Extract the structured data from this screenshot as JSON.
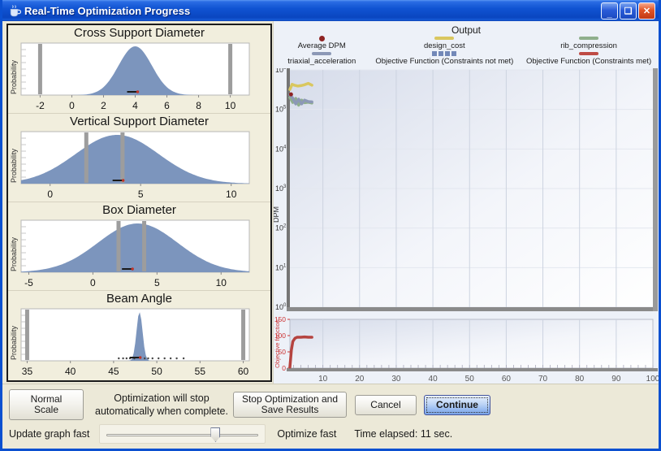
{
  "window": {
    "title": "Real-Time Optimization Progress",
    "minimize_glyph": "_",
    "restore_glyph": "❏",
    "close_glyph": "✕"
  },
  "output_panel": {
    "title": "Output",
    "legend": [
      {
        "label": "Average DPM",
        "marker": "dot",
        "color": "#8e2323"
      },
      {
        "label": "design_cost",
        "marker": "line",
        "color": "#d9c75f"
      },
      {
        "label": "rib_compression",
        "marker": "line",
        "color": "#8faf8c"
      },
      {
        "label": "triaxial_acceleration",
        "marker": "line",
        "color": "#8c98b6"
      },
      {
        "label": "Objective Function (Constraints not met)",
        "marker": "squares",
        "color": "#7288b8"
      },
      {
        "label": "Objective Function (Constraints met)",
        "marker": "line",
        "color": "#be4b45"
      }
    ]
  },
  "chart_data": [
    {
      "type": "area",
      "title": "Cross Support Diameter",
      "ylabel": "Probability",
      "xmin": -3.2,
      "xmax": 11.2,
      "xticks": [
        -2,
        0,
        2,
        4,
        6,
        8,
        10
      ],
      "mean": 4,
      "std": 1.05,
      "bounds": [
        -2,
        10
      ],
      "marker": 4,
      "fill": "#7c95bd"
    },
    {
      "type": "area",
      "title": "Vertical Support Diameter",
      "ylabel": "Probability",
      "xmin": -1.6,
      "xmax": 11.0,
      "xticks": [
        0,
        5,
        10
      ],
      "mean": 3.7,
      "std": 2.3,
      "bounds": [
        2,
        4
      ],
      "marker": 3.9,
      "fill": "#7c95bd"
    },
    {
      "type": "area",
      "title": "Box Diameter",
      "ylabel": "Probability",
      "xmin": -5.6,
      "xmax": 12.2,
      "xticks": [
        -5,
        0,
        5,
        10
      ],
      "mean": 3.5,
      "std": 3.1,
      "bounds": [
        2,
        4
      ],
      "marker": 2.9,
      "fill": "#7c95bd"
    },
    {
      "type": "area",
      "title": "Beam Angle",
      "ylabel": "Probability",
      "xmin": 34.3,
      "xmax": 60.7,
      "xticks": [
        35,
        40,
        45,
        50,
        55,
        60
      ],
      "mean": 48,
      "std": 0.35,
      "bounds": [
        35,
        60
      ],
      "marker": 47.8,
      "fill": "#7c95bd",
      "dots": [
        45.6,
        46.1,
        46.5,
        46.9,
        47.4,
        48.6,
        49.0,
        49.5,
        50.2,
        50.9,
        51.6,
        52.3,
        53.1
      ]
    },
    {
      "type": "line",
      "ylabel": "DPM",
      "yscale": "log",
      "ydecades": [
        6,
        5,
        4,
        3,
        2,
        1,
        0
      ],
      "xlim": [
        1,
        100
      ],
      "xticks": [
        10,
        20,
        30,
        40,
        50,
        60,
        70,
        80,
        90,
        100
      ],
      "series": [
        {
          "name": "design_cost",
          "color": "#d9c75f",
          "points": [
            [
              1,
              320000
            ],
            [
              1.6,
              430000
            ],
            [
              2.4,
              405000
            ],
            [
              3.2,
              390000
            ],
            [
              4,
              400000
            ],
            [
              5,
              420000
            ],
            [
              6,
              455000
            ],
            [
              7,
              410000
            ]
          ]
        },
        {
          "name": "rib_compression",
          "color": "#8faf8c",
          "points": [
            [
              1,
              200000
            ],
            [
              1.8,
              150000
            ],
            [
              2.6,
              190000
            ],
            [
              3.4,
              128000
            ],
            [
              4.2,
              172000
            ],
            [
              5,
              148000
            ],
            [
              6,
              152000
            ],
            [
              7,
              145000
            ]
          ]
        },
        {
          "name": "triaxial_acceleration",
          "color": "#8c98b6",
          "points": [
            [
              1,
              235000
            ],
            [
              1.8,
              192000
            ],
            [
              2.6,
              138000
            ],
            [
              3.4,
              182000
            ],
            [
              4.2,
              138000
            ],
            [
              5,
              172000
            ],
            [
              6,
              158000
            ],
            [
              7,
              155000
            ]
          ]
        }
      ],
      "point_series": [
        {
          "name": "Average DPM",
          "color": "#8e2323",
          "points": [
            [
              1.3,
              240000
            ]
          ]
        }
      ]
    },
    {
      "type": "line",
      "ylabel": "Objective function",
      "ylim": [
        0,
        150
      ],
      "yticks": [
        0,
        50,
        100,
        150
      ],
      "xlim": [
        1,
        100
      ],
      "xticks": [
        10,
        20,
        30,
        40,
        50,
        60,
        70,
        80,
        90,
        100
      ],
      "series": [
        {
          "name": "Objective Function",
          "color": "#b5433f",
          "points": [
            [
              1,
              3
            ],
            [
              1.4,
              55
            ],
            [
              1.8,
              82
            ],
            [
              2.4,
              92
            ],
            [
              3,
              95
            ],
            [
              4,
              95
            ],
            [
              5,
              96
            ],
            [
              6,
              95
            ],
            [
              7,
              95
            ]
          ]
        }
      ]
    }
  ],
  "footer": {
    "normal_scale": "Normal Scale",
    "status_line1": "Optimization will stop",
    "status_line2": "automatically when complete.",
    "stop_line1": "Stop Optimization and",
    "stop_line2": "Save Results",
    "cancel": "Cancel",
    "continue": "Continue",
    "update_graph_fast": "Update graph fast",
    "optimize_fast": "Optimize fast",
    "time_elapsed": "Time elapsed: 11 sec.",
    "slider_pct": 70
  }
}
